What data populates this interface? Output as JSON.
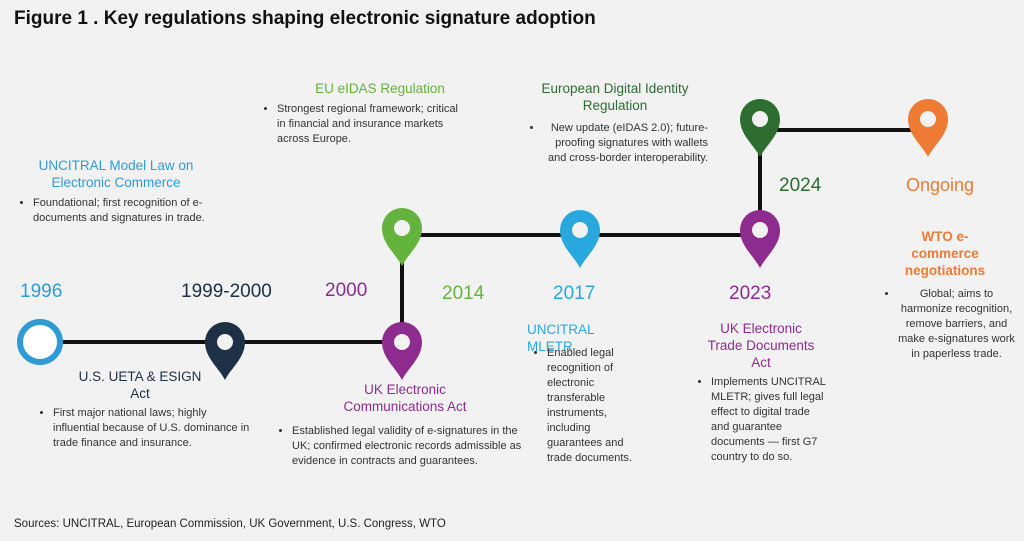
{
  "title": "Figure 1 . Key regulations shaping electronic signature adoption",
  "source": "Sources: UNCITRAL, European Commission, UK Government, U.S. Congress, WTO",
  "colors": {
    "teal": "#2e9bd6",
    "navy": "#1e3045",
    "green": "#64b33d",
    "purple": "#8e2b8e",
    "blue": "#29a8de",
    "darkgreen": "#2d6d2f",
    "orange": "#ee7a33"
  },
  "events": [
    {
      "id": "e1996",
      "year": "1996",
      "title": "UNCITRAL Model Law on Electronic Commerce",
      "bullet": "Foundational; first recognition of e-documents and signatures in trade."
    },
    {
      "id": "e1999",
      "year": "1999-2000",
      "title": "U.S. UETA & ESIGN Act",
      "bullet": "First major national laws; highly influential because of U.S. dominance in trade finance and insurance."
    },
    {
      "id": "e2000",
      "year": "2000",
      "title": "UK Electronic Communications Act",
      "bullet": "Established legal validity of e-signatures in the UK; confirmed electronic records admissible as evidence in contracts and guarantees."
    },
    {
      "id": "e2014",
      "year": "2014",
      "title": "EU eIDAS Regulation",
      "bullet": "Strongest regional framework; critical in financial and insurance markets across Europe."
    },
    {
      "id": "e2017",
      "year": "2017",
      "title": "UNCITRAL MLETR",
      "bullet": "Enabled legal recognition of electronic transferable instruments, including guarantees and trade documents."
    },
    {
      "id": "e2023",
      "year": "2023",
      "title": "UK Electronic Trade Documents Act",
      "bullet": "Implements UNCITRAL MLETR; gives full legal effect to digital trade and guarantee documents — first G7 country to do so."
    },
    {
      "id": "e2024",
      "year": "2024",
      "title": "European Digital Identity Regulation",
      "bullet": "New update (eIDAS 2.0); future-proofing signatures with wallets and cross-border interoperability."
    },
    {
      "id": "eongoing",
      "year": "Ongoing",
      "title": "WTO e-commerce negotiations",
      "bullet": "Global; aims to harmonize recognition, remove barriers, and make e-signatures work in paperless trade."
    }
  ]
}
